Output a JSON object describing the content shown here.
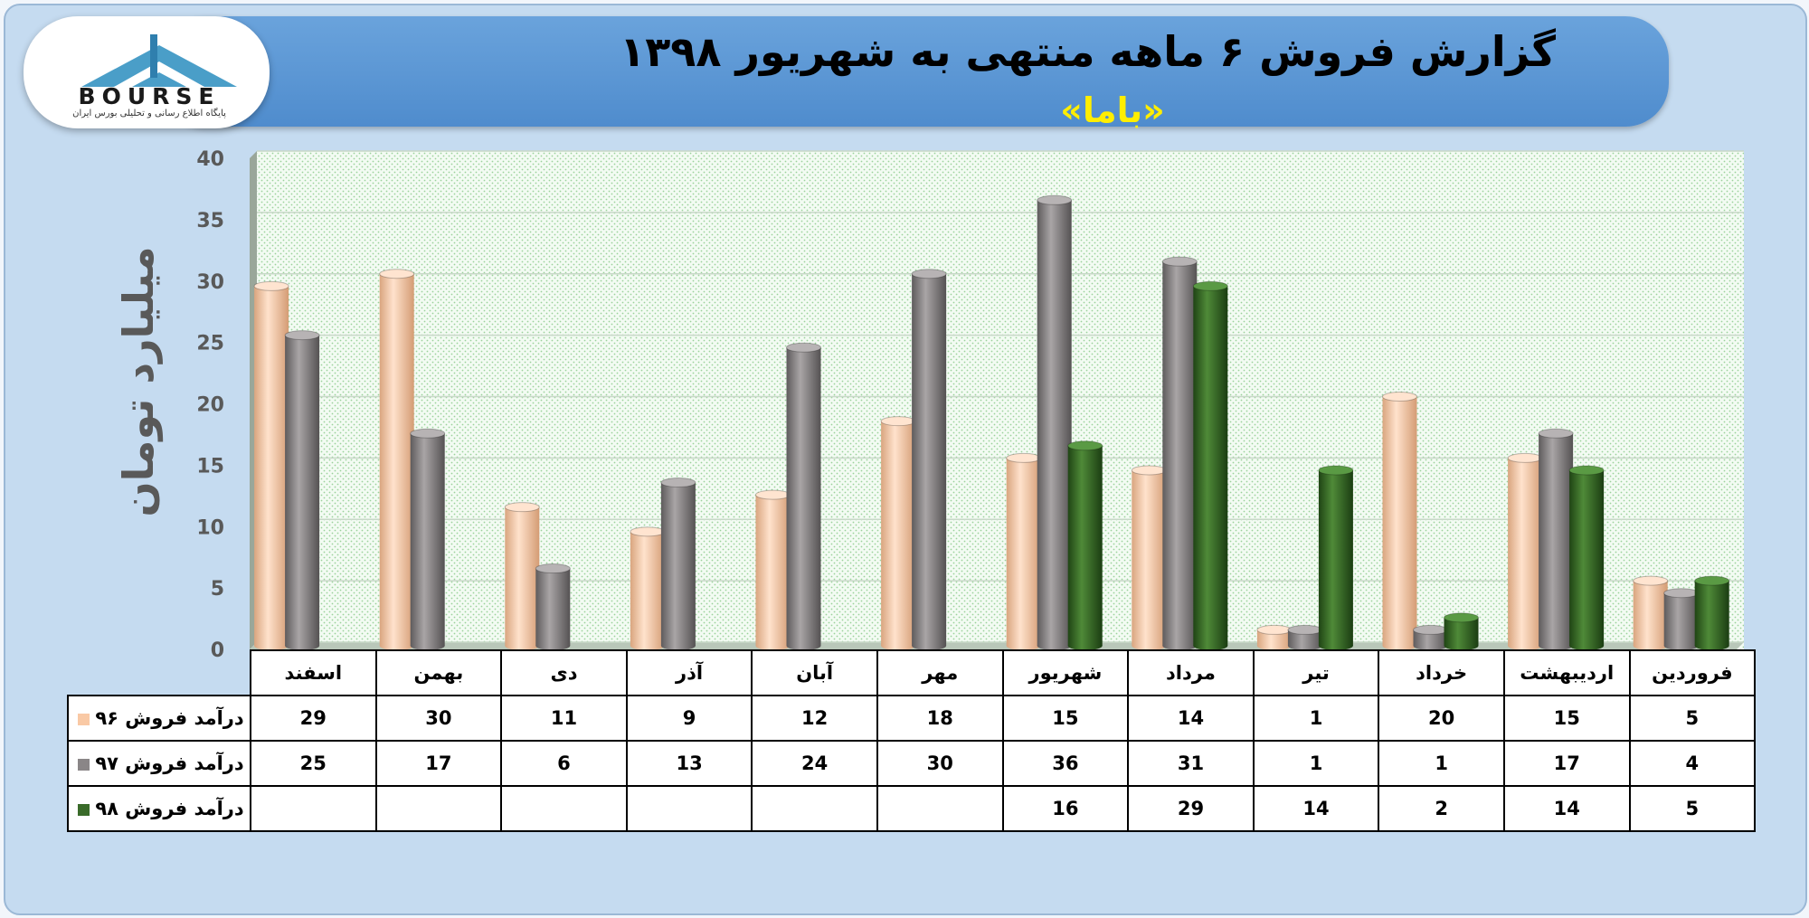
{
  "header": {
    "title": "گزارش فروش ۶ ماهه منتهی به شهریور ۱۳۹۸",
    "subtitle": "«باما»"
  },
  "logo": {
    "text": "BOURSE",
    "tagline": "پایگاه اطلاع رسانی و تحلیلی بورس ایران"
  },
  "colors": {
    "series_96": "#f9c9a5",
    "series_97": "#8a8687",
    "series_98": "#3a6b2a",
    "banner": "#5b97d5",
    "background": "#c5dbf0"
  },
  "chart_data": {
    "type": "bar",
    "title": "گزارش فروش ۶ ماهه منتهی به شهریور ۱۳۹۸",
    "subtitle": "«باما»",
    "ylabel": "میلیارد تومان",
    "ylim": [
      0,
      40
    ],
    "yticks": [
      0,
      5,
      10,
      15,
      20,
      25,
      30,
      35,
      40
    ],
    "grid": true,
    "categories": [
      "فروردین",
      "اردیبهشت",
      "خرداد",
      "تیر",
      "مرداد",
      "شهریور",
      "مهر",
      "آبان",
      "آذر",
      "دی",
      "بهمن",
      "اسفند"
    ],
    "series": [
      {
        "name": "درآمد فروش ۹۶",
        "values": [
          5,
          15,
          20,
          1,
          14,
          15,
          18,
          12,
          9,
          11,
          30,
          29
        ]
      },
      {
        "name": "درآمد فروش ۹۷",
        "values": [
          4,
          17,
          1,
          1,
          31,
          36,
          30,
          24,
          13,
          6,
          17,
          25
        ]
      },
      {
        "name": "درآمد فروش ۹۸",
        "values": [
          5,
          14,
          2,
          14,
          29,
          16,
          null,
          null,
          null,
          null,
          null,
          null
        ]
      }
    ]
  }
}
